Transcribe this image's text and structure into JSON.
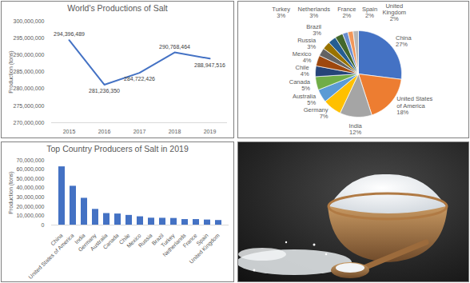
{
  "chart_data": [
    {
      "type": "line",
      "title": "World's Productions of Salt",
      "categories": [
        "2015",
        "2016",
        "2017",
        "2018",
        "2019"
      ],
      "values": [
        294396489,
        281236350,
        284722426,
        290768464,
        288947516
      ],
      "value_labels": [
        "294,396,489",
        "281,236,350",
        "284,722,426",
        "290,768,464",
        "288,947,516"
      ],
      "data_labels": true,
      "color": "#4472c4",
      "ylabel": "Production (tons)",
      "ylim": [
        270000000,
        300000000
      ],
      "yticks": [
        {
          "value": 270000000,
          "label": "270,000,000"
        },
        {
          "value": 275000000,
          "label": "275,000,000"
        },
        {
          "value": 280000000,
          "label": "280,000,000"
        },
        {
          "value": 285000000,
          "label": "285,000,000"
        },
        {
          "value": 290000000,
          "label": "290,000,000"
        },
        {
          "value": 295000000,
          "label": "295,000,000"
        },
        {
          "value": 300000000,
          "label": "300,000,000"
        }
      ],
      "grid": false
    },
    {
      "type": "pie",
      "categories": [
        "China",
        "United States of America",
        "India",
        "Germany",
        "Australia",
        "Canada",
        "Chile",
        "Mexico",
        "Russia",
        "Brazil",
        "Turkey",
        "Netherlands",
        "France",
        "Spain",
        "United Kingdom"
      ],
      "values": [
        27,
        18,
        12,
        7,
        5,
        5,
        4,
        4,
        3,
        3,
        3,
        3,
        2,
        2,
        2
      ],
      "value_labels": [
        "27%",
        "18%",
        "12%",
        "7%",
        "5%",
        "5%",
        "4%",
        "4%",
        "3%",
        "3%",
        "3%",
        "3%",
        "2%",
        "2%",
        "2%"
      ],
      "data_labels": true,
      "colors": [
        "#4472c4",
        "#ed7d31",
        "#a5a5a5",
        "#ffc000",
        "#5b9bd5",
        "#70ad47",
        "#264478",
        "#9e480e",
        "#636363",
        "#997300",
        "#255e91",
        "#43682b",
        "#698ed0",
        "#f1975a",
        "#b7b7b7"
      ]
    },
    {
      "type": "bar",
      "title": "Top Country Producers of Salt in 2019",
      "categories": [
        "China",
        "United States of America",
        "India",
        "Germany",
        "Australia",
        "Canada",
        "Chile",
        "Mexico",
        "Russia",
        "Brazil",
        "Turkey",
        "Netherlands",
        "France",
        "Spain",
        "United Kingdom"
      ],
      "values": [
        63000000,
        42000000,
        29000000,
        17000000,
        12500000,
        12000000,
        10500000,
        9000000,
        7500000,
        7400000,
        7200000,
        6000000,
        6000000,
        5500000,
        5000000
      ],
      "color": "#4472c4",
      "ylabel": "Production (tons)",
      "ylim": [
        0,
        70000000
      ],
      "yticks": [
        0,
        {
          "value": 10000000,
          "label": "10,000,000"
        },
        {
          "value": 20000000,
          "label": "20,000,000"
        },
        {
          "value": 30000000,
          "label": "30,000,000"
        },
        {
          "value": 40000000,
          "label": "40,000,000"
        },
        {
          "value": 50000000,
          "label": "50,000,000"
        },
        {
          "value": 60000000,
          "label": "60,000,000"
        },
        {
          "value": 70000000,
          "label": "70,000,000"
        }
      ],
      "grid": false
    }
  ]
}
